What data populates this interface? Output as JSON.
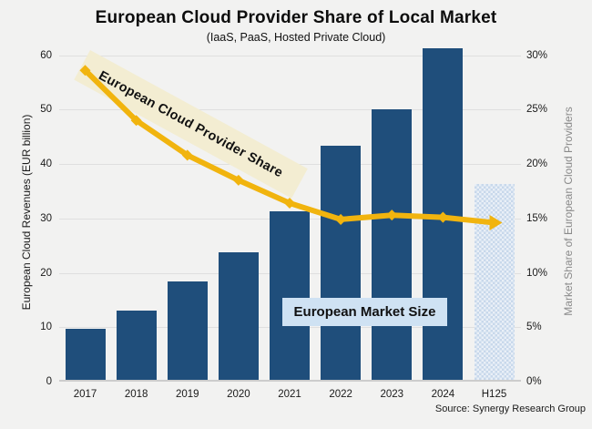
{
  "title": "European Cloud Provider Share of Local Market",
  "subtitle": "(IaaS, PaaS, Hosted Private Cloud)",
  "source": "Source: Synergy Research Group",
  "annotations": {
    "line_label": "European Cloud Provider Share",
    "bar_label": "European Market Size"
  },
  "colors": {
    "background": "#f2f2f1",
    "bar": "#1f4e7b",
    "forecast_bar_base": "#dce7f3",
    "forecast_bar_pattern": "#c8d8eb",
    "line": "#f1b40e",
    "gridline": "#dfdfdf",
    "axis_line": "#cccccc",
    "beige_label_bg": "#f3edd2",
    "blue_label_bg": "#cfe2f3",
    "right_axis_title": "#8a8a8a",
    "text": "#1a1a1a"
  },
  "chart_data": {
    "type": "combo: bar + line, dual axis",
    "categories": [
      "2017",
      "2018",
      "2019",
      "2020",
      "2021",
      "2022",
      "2023",
      "2024",
      "H125"
    ],
    "series": [
      {
        "name": "European Market Size",
        "type": "bar",
        "axis": "left",
        "unit": "EUR billion",
        "values": [
          9.3,
          12.7,
          18,
          23.4,
          31,
          43,
          49.7,
          61,
          36
        ],
        "last_is_forecast": true
      },
      {
        "name": "European Cloud Provider Share",
        "type": "line",
        "axis": "right",
        "unit": "%",
        "values": [
          28.6,
          24,
          20.8,
          18.5,
          16.4,
          14.9,
          15.3,
          15.1,
          14.6
        ],
        "marker": "diamond",
        "ends_with_arrow": true
      }
    ],
    "left_axis": {
      "title": "European Cloud Revenues (EUR billion)",
      "min": 0,
      "max": 60,
      "ticks": [
        0,
        10,
        20,
        30,
        40,
        50,
        60
      ]
    },
    "right_axis": {
      "title": "Market Share of European Cloud Providers",
      "min": 0,
      "max": 30,
      "ticks": [
        "0%",
        "5%",
        "10%",
        "15%",
        "20%",
        "25%",
        "30%"
      ]
    },
    "grid": "horizontal only",
    "legend": "none (inline text annotations)"
  }
}
